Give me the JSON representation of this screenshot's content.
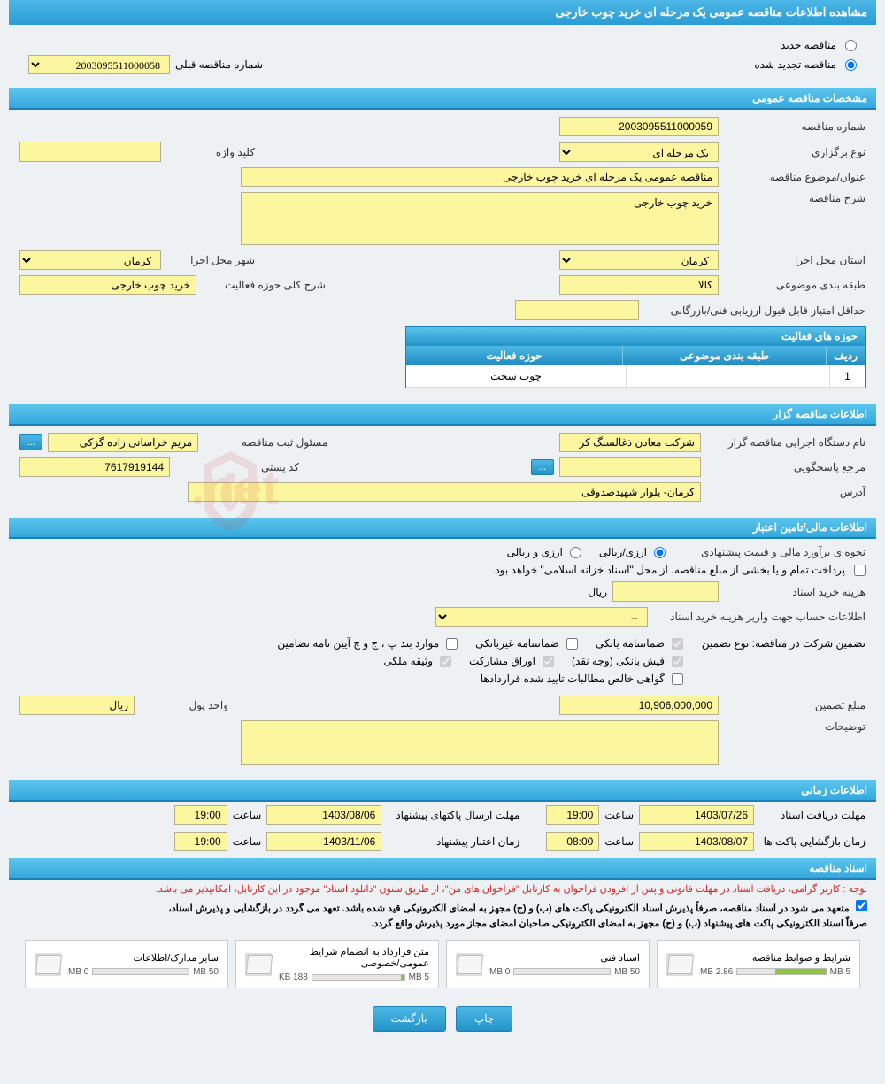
{
  "page_title": "مشاهده اطلاعات مناقصه عمومی یک مرحله ای خرید چوب خارجی",
  "tender_type": {
    "new_label": "مناقصه جدید",
    "renewed_label": "مناقصه تجدید شده",
    "prev_number_label": "شماره مناقصه قبلی",
    "prev_number": "2003095511000058"
  },
  "general_section": {
    "header": "مشخصات مناقصه عمومی",
    "number_label": "شماره مناقصه",
    "number": "2003095511000059",
    "type_label": "نوع برگزاری",
    "type": "یک مرحله ای",
    "keyword_label": "کلید واژه",
    "keyword": "",
    "title_label": "عنوان/موضوع مناقصه",
    "title": "مناقصه عمومی یک مرحله ای خرید چوب خارجی",
    "desc_label": "شرح مناقصه",
    "desc": "خرید چوب خارجی",
    "province_label": "استان محل اجرا",
    "province": "کرمان",
    "city_label": "شهر محل اجرا",
    "city": "کرمان",
    "category_label": "طبقه بندی موضوعی",
    "category": "کالا",
    "field_desc_label": "شرح کلی حوزه فعالیت",
    "field_desc": "خرید چوب خارجی",
    "min_score_label": "حداقل امتیاز قابل قبول ارزیابی فنی/بازرگانی",
    "min_score": "",
    "activity_header": "حوزه های فعالیت",
    "col_idx": "ردیف",
    "col_cat": "طبقه بندی موضوعی",
    "col_field": "حوزه فعالیت",
    "row_idx": "1",
    "row_cat": "",
    "row_field": "چوب سخت"
  },
  "tenderer_section": {
    "header": "اطلاعات مناقصه گزار",
    "org_label": "نام دستگاه اجرایی مناقصه گزار",
    "org": "شرکت معادن ذغالسنگ کر",
    "responsible_label": "مسئول ثبت مناقصه",
    "responsible": "مریم خراسانی زاده گزکی",
    "more_btn": "...",
    "ref_label": "مرجع پاسخگویی",
    "ref": "",
    "postal_label": "کد پستی",
    "postal": "7617919144",
    "address_label": "آدرس",
    "address": "کرمان- بلوار شهیدصدوقی"
  },
  "financial_section": {
    "header": "اطلاعات مالی/تامین اعتبار",
    "estimate_label": "نحوه ی برآورد مالی و قیمت پیشنهادی",
    "arzi_label": "ارزی/ریالی",
    "arzi_riyali_label": "ارزی و ریالی",
    "treasury_note": "پرداخت تمام و یا بخشی از مبلغ مناقصه، از محل \"اسناد خزانه اسلامی\" خواهد بود.",
    "doc_cost_label": "هزینه خرید اسناد",
    "doc_cost": "",
    "doc_cost_unit": "ریال",
    "account_label": "اطلاعات حساب جهت واریز هزینه خرید اسناد",
    "account": "--",
    "guarantee_label": "تضمین شرکت در مناقصه:   نوع تضمین",
    "gt_bank": "ضمانتنامه بانکی",
    "gt_nonbank": "ضمانتنامه غیربانکی",
    "gt_cases": "موارد بند پ ، ج و چ آیین نامه تضامین",
    "gt_cash": "فیش بانکی (وجه نقد)",
    "gt_bonds": "اوراق مشارکت",
    "gt_property": "وثیقه ملکی",
    "gt_cert": "گواهی خالص مطالبات تایید شده قراردادها",
    "amount_label": "مبلغ تضمین",
    "amount": "10,906,000,000",
    "unit_label": "واحد پول",
    "unit": "ریال",
    "notes_label": "توضیحات",
    "notes": ""
  },
  "time_section": {
    "header": "اطلاعات زمانی",
    "receive_label": "مهلت دریافت اسناد",
    "receive_date": "1403/07/26",
    "receive_time_label": "ساعت",
    "receive_time": "19:00",
    "submit_label": "مهلت ارسال پاکتهای پیشنهاد",
    "submit_date": "1403/08/06",
    "submit_time": "19:00",
    "open_label": "زمان بازگشایی پاکت ها",
    "open_date": "1403/08/07",
    "open_time": "08:00",
    "valid_label": "زمان اعتبار پیشنهاد",
    "valid_date": "1403/11/06",
    "valid_time": "19:00"
  },
  "docs_section": {
    "header": "اسناد مناقصه",
    "note_red": "توجه : کاربر گرامی، دریافت اسناد در مهلت قانونی و پس از افزودن فراخوان به کارتابل \"فراخوان های من\"، از طریق ستون \"دانلود اسناد\" موجود در این کارتابل، امکانپذیر می باشد.",
    "note1": "متعهد می شود در اسناد مناقصه، صرفاً پذیرش اسناد الکترونیکی پاکت های (ب) و (ج) مجهز به امضای الکترونیکی قید شده باشد. تعهد می گردد در بازگشایی و پذیرش اسناد،",
    "note2": "صرفاً اسناد الکترونیکی پاکت های پیشنهاد (ب) و (ج) مجهز به امضای الکترونیکی صاحبان امضای مجاز مورد پذیرش واقع گردد.",
    "files": [
      {
        "title": "شرایط و ضوابط مناقصه",
        "used": "2.86 MB",
        "max": "5 MB",
        "pct": 57
      },
      {
        "title": "اسناد فنی",
        "used": "0 MB",
        "max": "50 MB",
        "pct": 0
      },
      {
        "title": "متن قرارداد به انضمام شرایط عمومی/خصوصی",
        "used": "188 KB",
        "max": "5 MB",
        "pct": 4
      },
      {
        "title": "سایر مدارک/اطلاعات",
        "used": "0 MB",
        "max": "50 MB",
        "pct": 0
      }
    ]
  },
  "actions": {
    "print": "چاپ",
    "back": "بازگشت"
  }
}
